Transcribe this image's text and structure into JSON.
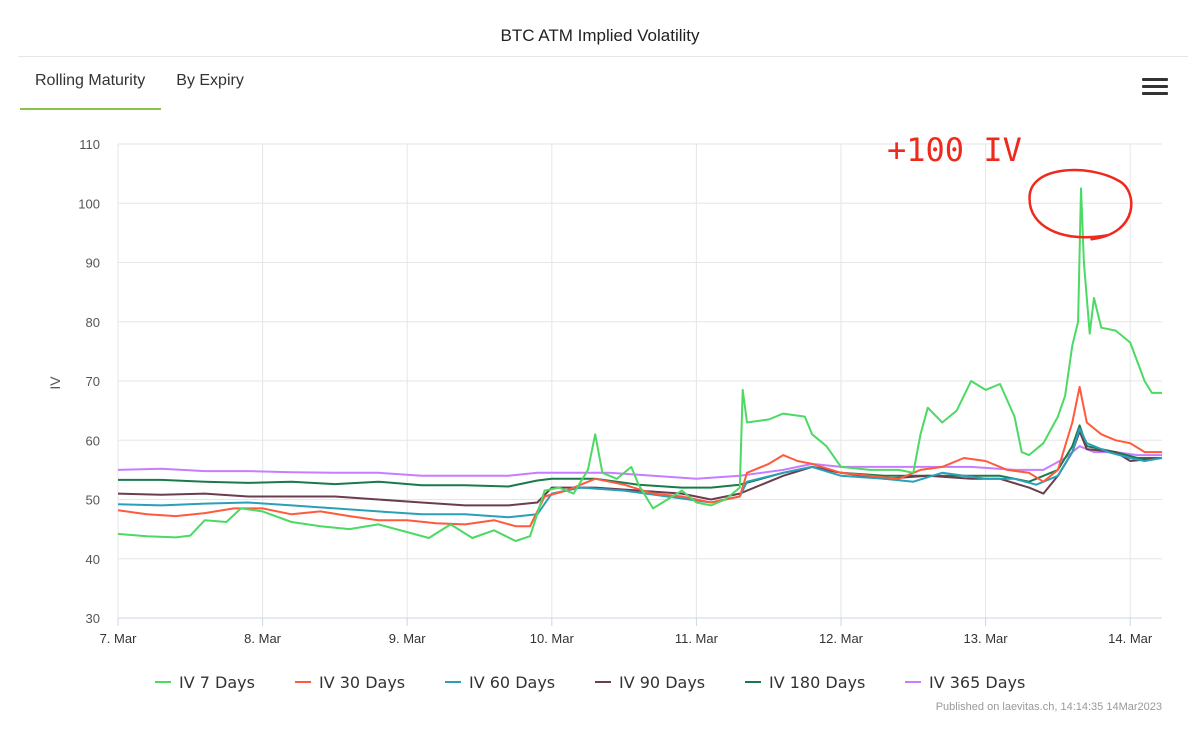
{
  "title": "BTC ATM Implied Volatility",
  "tabs": [
    {
      "label": "Rolling Maturity",
      "active": true
    },
    {
      "label": "By Expiry",
      "active": false
    }
  ],
  "menu_icon": "hamburger-menu-icon",
  "credits": "Published on laevitas.ch, 14:14:35 14Mar2023",
  "annotation": {
    "text": "+100 IV",
    "color": "#ee2a1c",
    "target_x": 6.65,
    "target_y": 100
  },
  "chart_data": {
    "type": "line",
    "ylabel": "IV",
    "xlabel": "",
    "ylim": [
      30,
      110
    ],
    "yticks": [
      30,
      40,
      50,
      60,
      70,
      80,
      90,
      100,
      110
    ],
    "xlim": [
      0,
      7.22
    ],
    "xticks": [
      {
        "x": 0,
        "label": "7. Mar"
      },
      {
        "x": 1,
        "label": "8. Mar"
      },
      {
        "x": 2,
        "label": "9. Mar"
      },
      {
        "x": 3,
        "label": "10. Mar"
      },
      {
        "x": 4,
        "label": "11. Mar"
      },
      {
        "x": 5,
        "label": "12. Mar"
      },
      {
        "x": 6,
        "label": "13. Mar"
      },
      {
        "x": 7,
        "label": "14. Mar"
      }
    ],
    "grid": true,
    "legend": "bottom",
    "series": [
      {
        "name": "IV 7 Days",
        "color": "#4cd964",
        "points": [
          [
            0,
            44.2
          ],
          [
            0.2,
            43.8
          ],
          [
            0.4,
            43.6
          ],
          [
            0.5,
            43.9
          ],
          [
            0.6,
            46.5
          ],
          [
            0.75,
            46.2
          ],
          [
            0.85,
            48.5
          ],
          [
            1,
            48
          ],
          [
            1.2,
            46.2
          ],
          [
            1.4,
            45.5
          ],
          [
            1.6,
            45
          ],
          [
            1.8,
            45.8
          ],
          [
            2,
            44.5
          ],
          [
            2.15,
            43.5
          ],
          [
            2.3,
            45.8
          ],
          [
            2.45,
            43.5
          ],
          [
            2.6,
            44.8
          ],
          [
            2.75,
            43
          ],
          [
            2.85,
            43.8
          ],
          [
            2.95,
            51.5
          ],
          [
            3.05,
            52
          ],
          [
            3.15,
            51
          ],
          [
            3.25,
            55
          ],
          [
            3.3,
            61
          ],
          [
            3.35,
            54.5
          ],
          [
            3.45,
            53.5
          ],
          [
            3.55,
            55.5
          ],
          [
            3.6,
            52.5
          ],
          [
            3.7,
            48.5
          ],
          [
            3.8,
            50
          ],
          [
            3.9,
            51.5
          ],
          [
            4,
            49.5
          ],
          [
            4.1,
            49
          ],
          [
            4.2,
            50
          ],
          [
            4.3,
            52
          ],
          [
            4.32,
            68.5
          ],
          [
            4.35,
            63
          ],
          [
            4.5,
            63.5
          ],
          [
            4.6,
            64.5
          ],
          [
            4.75,
            64
          ],
          [
            4.8,
            61
          ],
          [
            4.9,
            59
          ],
          [
            5,
            55.5
          ],
          [
            5.2,
            55
          ],
          [
            5.4,
            55
          ],
          [
            5.5,
            54.5
          ],
          [
            5.55,
            61
          ],
          [
            5.6,
            65.5
          ],
          [
            5.7,
            63
          ],
          [
            5.8,
            65
          ],
          [
            5.9,
            70
          ],
          [
            6,
            68.5
          ],
          [
            6.1,
            69.5
          ],
          [
            6.2,
            64
          ],
          [
            6.25,
            58
          ],
          [
            6.3,
            57.5
          ],
          [
            6.4,
            59.5
          ],
          [
            6.5,
            64
          ],
          [
            6.55,
            67.5
          ],
          [
            6.6,
            76
          ],
          [
            6.64,
            80
          ],
          [
            6.66,
            102.5
          ],
          [
            6.68,
            90
          ],
          [
            6.72,
            78
          ],
          [
            6.75,
            84
          ],
          [
            6.8,
            79
          ],
          [
            6.9,
            78.5
          ],
          [
            7,
            76.5
          ],
          [
            7.1,
            70
          ],
          [
            7.15,
            68
          ],
          [
            7.22,
            68
          ]
        ]
      },
      {
        "name": "IV 30 Days",
        "color": "#ff5a3c",
        "points": [
          [
            0,
            48.2
          ],
          [
            0.2,
            47.5
          ],
          [
            0.4,
            47.2
          ],
          [
            0.6,
            47.7
          ],
          [
            0.8,
            48.5
          ],
          [
            1,
            48.5
          ],
          [
            1.2,
            47.5
          ],
          [
            1.4,
            48
          ],
          [
            1.6,
            47.2
          ],
          [
            1.8,
            46.5
          ],
          [
            2,
            46.5
          ],
          [
            2.2,
            46
          ],
          [
            2.4,
            45.8
          ],
          [
            2.6,
            46.5
          ],
          [
            2.75,
            45.5
          ],
          [
            2.85,
            45.5
          ],
          [
            2.95,
            50.5
          ],
          [
            3.1,
            51.5
          ],
          [
            3.3,
            53.5
          ],
          [
            3.5,
            52.5
          ],
          [
            3.7,
            51
          ],
          [
            3.9,
            50.5
          ],
          [
            4.1,
            49.5
          ],
          [
            4.3,
            50.5
          ],
          [
            4.35,
            54.5
          ],
          [
            4.5,
            56
          ],
          [
            4.6,
            57.5
          ],
          [
            4.7,
            56.5
          ],
          [
            4.8,
            56
          ],
          [
            5,
            54.5
          ],
          [
            5.2,
            54
          ],
          [
            5.4,
            53.5
          ],
          [
            5.55,
            55
          ],
          [
            5.7,
            55.5
          ],
          [
            5.85,
            57
          ],
          [
            6,
            56.5
          ],
          [
            6.15,
            55
          ],
          [
            6.3,
            54.5
          ],
          [
            6.4,
            53
          ],
          [
            6.5,
            55
          ],
          [
            6.6,
            63
          ],
          [
            6.65,
            69
          ],
          [
            6.7,
            63
          ],
          [
            6.8,
            61
          ],
          [
            6.9,
            60
          ],
          [
            7,
            59.5
          ],
          [
            7.1,
            58
          ],
          [
            7.22,
            58
          ]
        ]
      },
      {
        "name": "IV 60 Days",
        "color": "#2aa0b8",
        "points": [
          [
            0,
            49.2
          ],
          [
            0.3,
            49
          ],
          [
            0.6,
            49.3
          ],
          [
            0.9,
            49.5
          ],
          [
            1.2,
            49
          ],
          [
            1.5,
            48.5
          ],
          [
            1.8,
            48
          ],
          [
            2.1,
            47.5
          ],
          [
            2.4,
            47.5
          ],
          [
            2.7,
            47
          ],
          [
            2.9,
            47.5
          ],
          [
            3,
            51
          ],
          [
            3.2,
            52
          ],
          [
            3.5,
            51.5
          ],
          [
            3.8,
            50.5
          ],
          [
            4.1,
            49.5
          ],
          [
            4.3,
            50.5
          ],
          [
            4.35,
            53
          ],
          [
            4.6,
            54.5
          ],
          [
            4.8,
            55.5
          ],
          [
            5,
            54
          ],
          [
            5.3,
            53.5
          ],
          [
            5.5,
            53
          ],
          [
            5.7,
            54.5
          ],
          [
            6,
            53.5
          ],
          [
            6.2,
            53.5
          ],
          [
            6.35,
            52.5
          ],
          [
            6.5,
            54
          ],
          [
            6.6,
            58
          ],
          [
            6.65,
            62
          ],
          [
            6.7,
            59.5
          ],
          [
            6.85,
            58
          ],
          [
            7,
            57
          ],
          [
            7.1,
            56.5
          ],
          [
            7.22,
            57
          ]
        ]
      },
      {
        "name": "IV 90 Days",
        "color": "#6b3d50",
        "points": [
          [
            0,
            51
          ],
          [
            0.3,
            50.8
          ],
          [
            0.6,
            51
          ],
          [
            0.9,
            50.5
          ],
          [
            1.2,
            50.5
          ],
          [
            1.5,
            50.5
          ],
          [
            1.8,
            50
          ],
          [
            2.1,
            49.5
          ],
          [
            2.4,
            49
          ],
          [
            2.7,
            49
          ],
          [
            2.9,
            49.5
          ],
          [
            3,
            52
          ],
          [
            3.3,
            52
          ],
          [
            3.6,
            51.5
          ],
          [
            3.9,
            51
          ],
          [
            4.1,
            50
          ],
          [
            4.3,
            51
          ],
          [
            4.6,
            54
          ],
          [
            4.8,
            55.5
          ],
          [
            5,
            54.5
          ],
          [
            5.3,
            53.5
          ],
          [
            5.6,
            54
          ],
          [
            5.9,
            53.5
          ],
          [
            6.1,
            53.5
          ],
          [
            6.3,
            52
          ],
          [
            6.4,
            51
          ],
          [
            6.5,
            54
          ],
          [
            6.6,
            58
          ],
          [
            6.65,
            61.5
          ],
          [
            6.7,
            58.5
          ],
          [
            6.9,
            58
          ],
          [
            7,
            56.5
          ],
          [
            7.22,
            57
          ]
        ]
      },
      {
        "name": "IV 180 Days",
        "color": "#1a7a4c",
        "points": [
          [
            0,
            53.3
          ],
          [
            0.3,
            53.3
          ],
          [
            0.6,
            53
          ],
          [
            0.9,
            52.8
          ],
          [
            1.2,
            53
          ],
          [
            1.5,
            52.6
          ],
          [
            1.8,
            53
          ],
          [
            2.1,
            52.4
          ],
          [
            2.4,
            52.4
          ],
          [
            2.7,
            52.2
          ],
          [
            2.9,
            53.2
          ],
          [
            3,
            53.5
          ],
          [
            3.3,
            53.5
          ],
          [
            3.6,
            52.5
          ],
          [
            3.9,
            52
          ],
          [
            4.1,
            52
          ],
          [
            4.3,
            52.5
          ],
          [
            4.6,
            54.5
          ],
          [
            4.8,
            55.5
          ],
          [
            5,
            54.5
          ],
          [
            5.3,
            54
          ],
          [
            5.6,
            54
          ],
          [
            5.9,
            54
          ],
          [
            6.1,
            54
          ],
          [
            6.3,
            53
          ],
          [
            6.5,
            55
          ],
          [
            6.6,
            59
          ],
          [
            6.65,
            62.5
          ],
          [
            6.7,
            59
          ],
          [
            6.9,
            58
          ],
          [
            7.05,
            57
          ],
          [
            7.22,
            57
          ]
        ]
      },
      {
        "name": "IV 365 Days",
        "color": "#c77dff",
        "points": [
          [
            0,
            55
          ],
          [
            0.3,
            55.2
          ],
          [
            0.6,
            54.8
          ],
          [
            0.9,
            54.8
          ],
          [
            1.2,
            54.6
          ],
          [
            1.5,
            54.5
          ],
          [
            1.8,
            54.5
          ],
          [
            2.1,
            54
          ],
          [
            2.4,
            54
          ],
          [
            2.7,
            54
          ],
          [
            2.9,
            54.5
          ],
          [
            3.1,
            54.5
          ],
          [
            3.4,
            54.5
          ],
          [
            3.7,
            54
          ],
          [
            4,
            53.5
          ],
          [
            4.3,
            54
          ],
          [
            4.6,
            55
          ],
          [
            4.8,
            56
          ],
          [
            5,
            55.5
          ],
          [
            5.3,
            55.5
          ],
          [
            5.6,
            55.5
          ],
          [
            5.9,
            55.5
          ],
          [
            6.2,
            55
          ],
          [
            6.4,
            55
          ],
          [
            6.55,
            57
          ],
          [
            6.65,
            59
          ],
          [
            6.75,
            58
          ],
          [
            6.9,
            58
          ],
          [
            7.05,
            57.5
          ],
          [
            7.22,
            57.5
          ]
        ]
      }
    ]
  }
}
